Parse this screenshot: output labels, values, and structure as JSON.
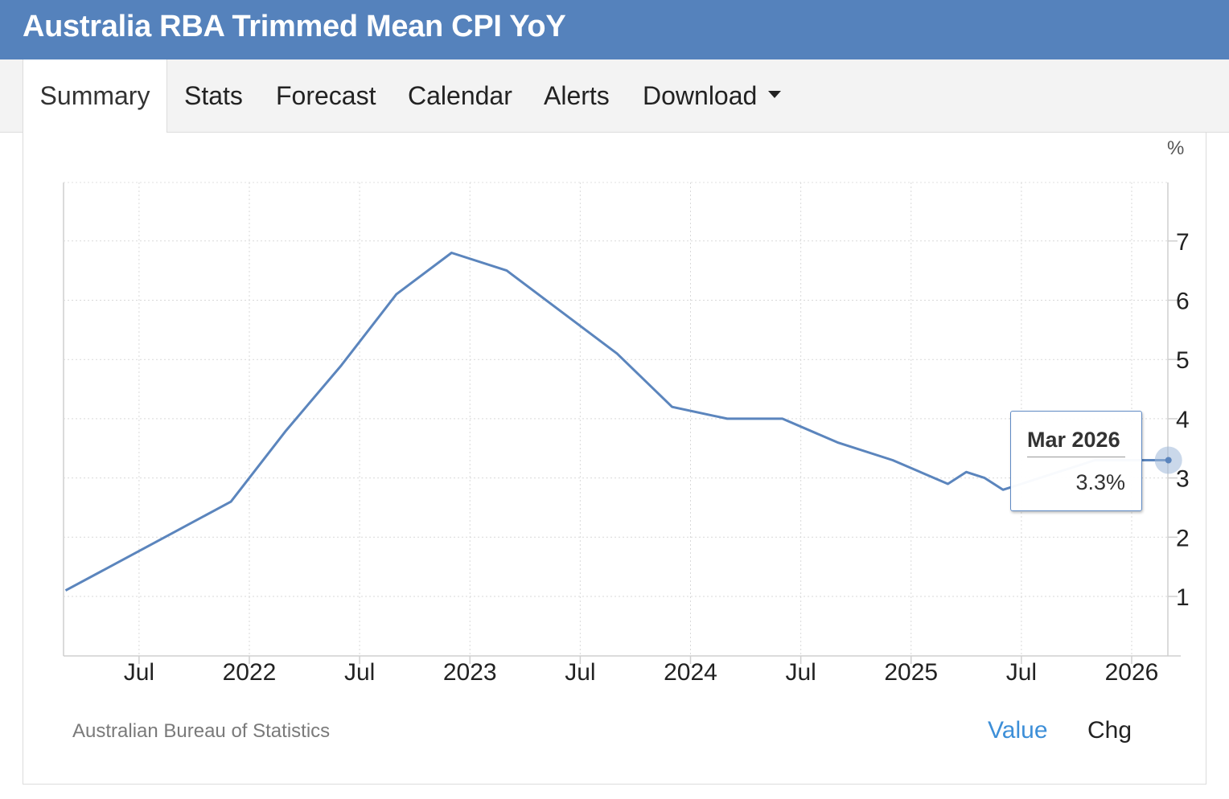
{
  "title": "Australia RBA Trimmed Mean CPI YoY",
  "tabs": [
    {
      "label": "Summary",
      "active": true
    },
    {
      "label": "Stats"
    },
    {
      "label": "Forecast"
    },
    {
      "label": "Calendar"
    },
    {
      "label": "Alerts"
    },
    {
      "label": "Download",
      "dropdown": true
    }
  ],
  "source": "Australian Bureau of Statistics",
  "toggles": {
    "value": "Value",
    "chg": "Chg"
  },
  "tooltip": {
    "date": "Mar 2026",
    "value": "3.3%"
  },
  "colors": {
    "header": "#5582bc",
    "line": "#5b85bd",
    "active_toggle": "#3d8fd8"
  },
  "chart_data": {
    "type": "line",
    "unit": "%",
    "y_ticks": [
      "1",
      "2",
      "3",
      "4",
      "5",
      "6",
      "7"
    ],
    "x_ticks": [
      "Jul",
      "2022",
      "Jul",
      "2023",
      "Jul",
      "2024",
      "Jul",
      "2025",
      "Jul",
      "2026"
    ],
    "ylim": [
      0,
      8
    ],
    "grid": true,
    "series": [
      {
        "points": [
          [
            "2021-03",
            1.1
          ],
          [
            "2021-06",
            1.6
          ],
          [
            "2021-09",
            2.1
          ],
          [
            "2021-12",
            2.6
          ],
          [
            "2022-03",
            3.8
          ],
          [
            "2022-06",
            4.9
          ],
          [
            "2022-09",
            6.1
          ],
          [
            "2022-12",
            6.8
          ],
          [
            "2023-03",
            6.5
          ],
          [
            "2023-06",
            5.8
          ],
          [
            "2023-09",
            5.1
          ],
          [
            "2023-12",
            4.2
          ],
          [
            "2024-03",
            4.0
          ],
          [
            "2024-06",
            4.0
          ],
          [
            "2024-09",
            3.6
          ],
          [
            "2024-12",
            3.3
          ],
          [
            "2025-03",
            2.9
          ],
          [
            "2025-04",
            3.1
          ],
          [
            "2025-05",
            3.0
          ],
          [
            "2025-06",
            2.8
          ],
          [
            "2025-07",
            2.9
          ],
          [
            "2025-08",
            3.0
          ],
          [
            "2025-09",
            3.1
          ],
          [
            "2025-10",
            3.2
          ],
          [
            "2025-11",
            3.3
          ],
          [
            "2025-12",
            3.3
          ],
          [
            "2026-01",
            3.3
          ],
          [
            "2026-02",
            3.3
          ],
          [
            "2026-03",
            3.3
          ]
        ]
      }
    ]
  }
}
